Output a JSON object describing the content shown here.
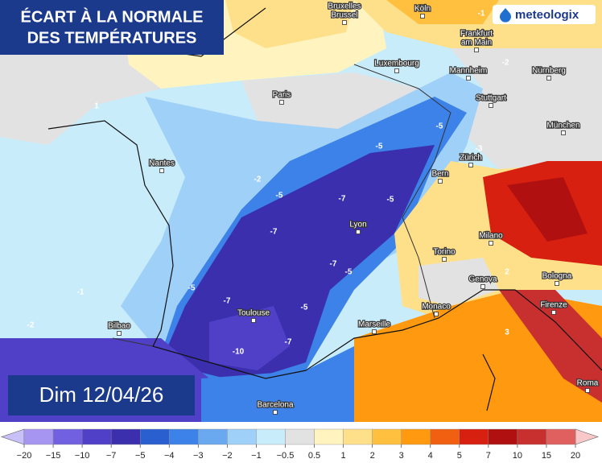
{
  "header": {
    "title_line1": "ÉCART À LA NORMALE",
    "title_line2": "DES TEMPÉRATURES",
    "logo": "meteologix",
    "date": "Dim 12/04/26"
  },
  "cities": [
    {
      "lines": [
        "Bruxelles",
        "Brussel"
      ]
    },
    {
      "lines": [
        "Köln"
      ]
    },
    {
      "lines": [
        "Frankfurt",
        "am Main"
      ]
    },
    {
      "lines": [
        "Luxembourg"
      ]
    },
    {
      "lines": [
        "Mannheim"
      ]
    },
    {
      "lines": [
        "Nürnberg"
      ]
    },
    {
      "lines": [
        "Paris"
      ]
    },
    {
      "lines": [
        "Stuttgart"
      ]
    },
    {
      "lines": [
        "München"
      ]
    },
    {
      "lines": [
        "Nantes"
      ]
    },
    {
      "lines": [
        "Zürich"
      ]
    },
    {
      "lines": [
        "Bern"
      ]
    },
    {
      "lines": [
        "Lyon"
      ]
    },
    {
      "lines": [
        "Milano"
      ]
    },
    {
      "lines": [
        "Torino"
      ]
    },
    {
      "lines": [
        "Genova"
      ]
    },
    {
      "lines": [
        "Bologna"
      ]
    },
    {
      "lines": [
        "Monaco"
      ]
    },
    {
      "lines": [
        "Firenze"
      ]
    },
    {
      "lines": [
        "Toulouse"
      ]
    },
    {
      "lines": [
        "Marseille"
      ]
    },
    {
      "lines": [
        "Bilbao"
      ]
    },
    {
      "lines": [
        "Barcelona"
      ]
    },
    {
      "lines": [
        "Roma"
      ]
    }
  ],
  "contour_labels": [
    "1",
    "-5",
    "-5",
    "-2",
    "-5",
    "-7",
    "-5",
    "-7",
    "-7",
    "-5",
    "-5",
    "-1",
    "-7",
    "-5",
    "-7",
    "-10",
    "-2",
    "3",
    "2",
    "-3",
    "-1",
    "-2"
  ],
  "legend": {
    "ticks": [
      "−20",
      "−15",
      "−10",
      "−7",
      "−5",
      "−4",
      "−3",
      "−2",
      "−1",
      "−0.5",
      "0.5",
      "1",
      "2",
      "3",
      "4",
      "5",
      "7",
      "10",
      "15",
      "20"
    ],
    "colors": [
      "#a696f2",
      "#7160e0",
      "#5040c8",
      "#3b2fae",
      "#2a5fd0",
      "#3c82e8",
      "#6aa8f0",
      "#9fd0f8",
      "#c8ecfa",
      "#e2e2e2",
      "#fff4c0",
      "#ffe08a",
      "#ffc040",
      "#ff9a10",
      "#f06010",
      "#d82010",
      "#b01010",
      "#c83030",
      "#e06060"
    ],
    "low_color": "#c8c0f8",
    "high_color": "#f8c8c8"
  }
}
